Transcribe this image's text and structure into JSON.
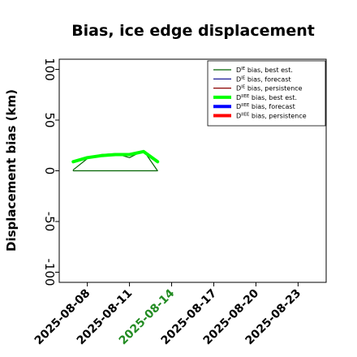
{
  "chart_data": {
    "type": "line",
    "title": "Bias, ice edge displacement",
    "xlabel": "",
    "ylabel": "Displacement bias (km)",
    "xlim": [
      "2025-08-06",
      "2025-08-25"
    ],
    "ylim": [
      -110,
      110
    ],
    "yticks": [
      -100,
      -50,
      0,
      50,
      100
    ],
    "xticks": [
      "2025-08-08",
      "2025-08-11",
      "2025-08-14",
      "2025-08-17",
      "2025-08-20",
      "2025-08-23"
    ],
    "highlight_xtick": "2025-08-14",
    "highlight_color": "#228b22",
    "grid": false,
    "legend_position": "top-right",
    "series": [
      {
        "name": "D^IE bias, best est.",
        "style": "thin",
        "color": "#006400",
        "x": [
          "2025-08-07",
          "2025-08-08",
          "2025-08-09",
          "2025-08-10",
          "2025-08-11",
          "2025-08-12",
          "2025-08-13",
          "2025-08-13",
          "2025-08-07"
        ],
        "y": [
          1,
          12,
          16,
          17,
          13,
          20,
          0,
          0,
          0
        ]
      },
      {
        "name": "D^IE bias, forecast",
        "style": "thin",
        "color": "#00008b",
        "x": [],
        "y": []
      },
      {
        "name": "D^IE bias, persistence",
        "style": "thin",
        "color": "#8b0000",
        "x": [],
        "y": []
      },
      {
        "name": "D^IIEE bias, best est.",
        "style": "thick",
        "color": "#00ff00",
        "x": [
          "2025-08-07",
          "2025-08-08",
          "2025-08-09",
          "2025-08-10",
          "2025-08-11",
          "2025-08-12",
          "2025-08-13"
        ],
        "y": [
          9,
          13,
          15,
          16,
          16,
          19,
          9
        ]
      },
      {
        "name": "D^IIEE bias, forecast",
        "style": "thick",
        "color": "#0000ff",
        "x": [],
        "y": []
      },
      {
        "name": "D^IIEE bias, persistence",
        "style": "thick",
        "color": "#ff0000",
        "x": [],
        "y": []
      }
    ]
  },
  "legend": [
    {
      "base": "D",
      "sup": "IE",
      "text": " bias, best est."
    },
    {
      "base": "D",
      "sup": "IE",
      "text": " bias, forecast"
    },
    {
      "base": "D",
      "sup": "IE",
      "text": " bias, persistence"
    },
    {
      "base": "D",
      "sup": "IIEE",
      "text": " bias, best est."
    },
    {
      "base": "D",
      "sup": "IIEE",
      "text": " bias, forecast"
    },
    {
      "base": "D",
      "sup": "IIEE",
      "text": " bias, persistence"
    }
  ]
}
